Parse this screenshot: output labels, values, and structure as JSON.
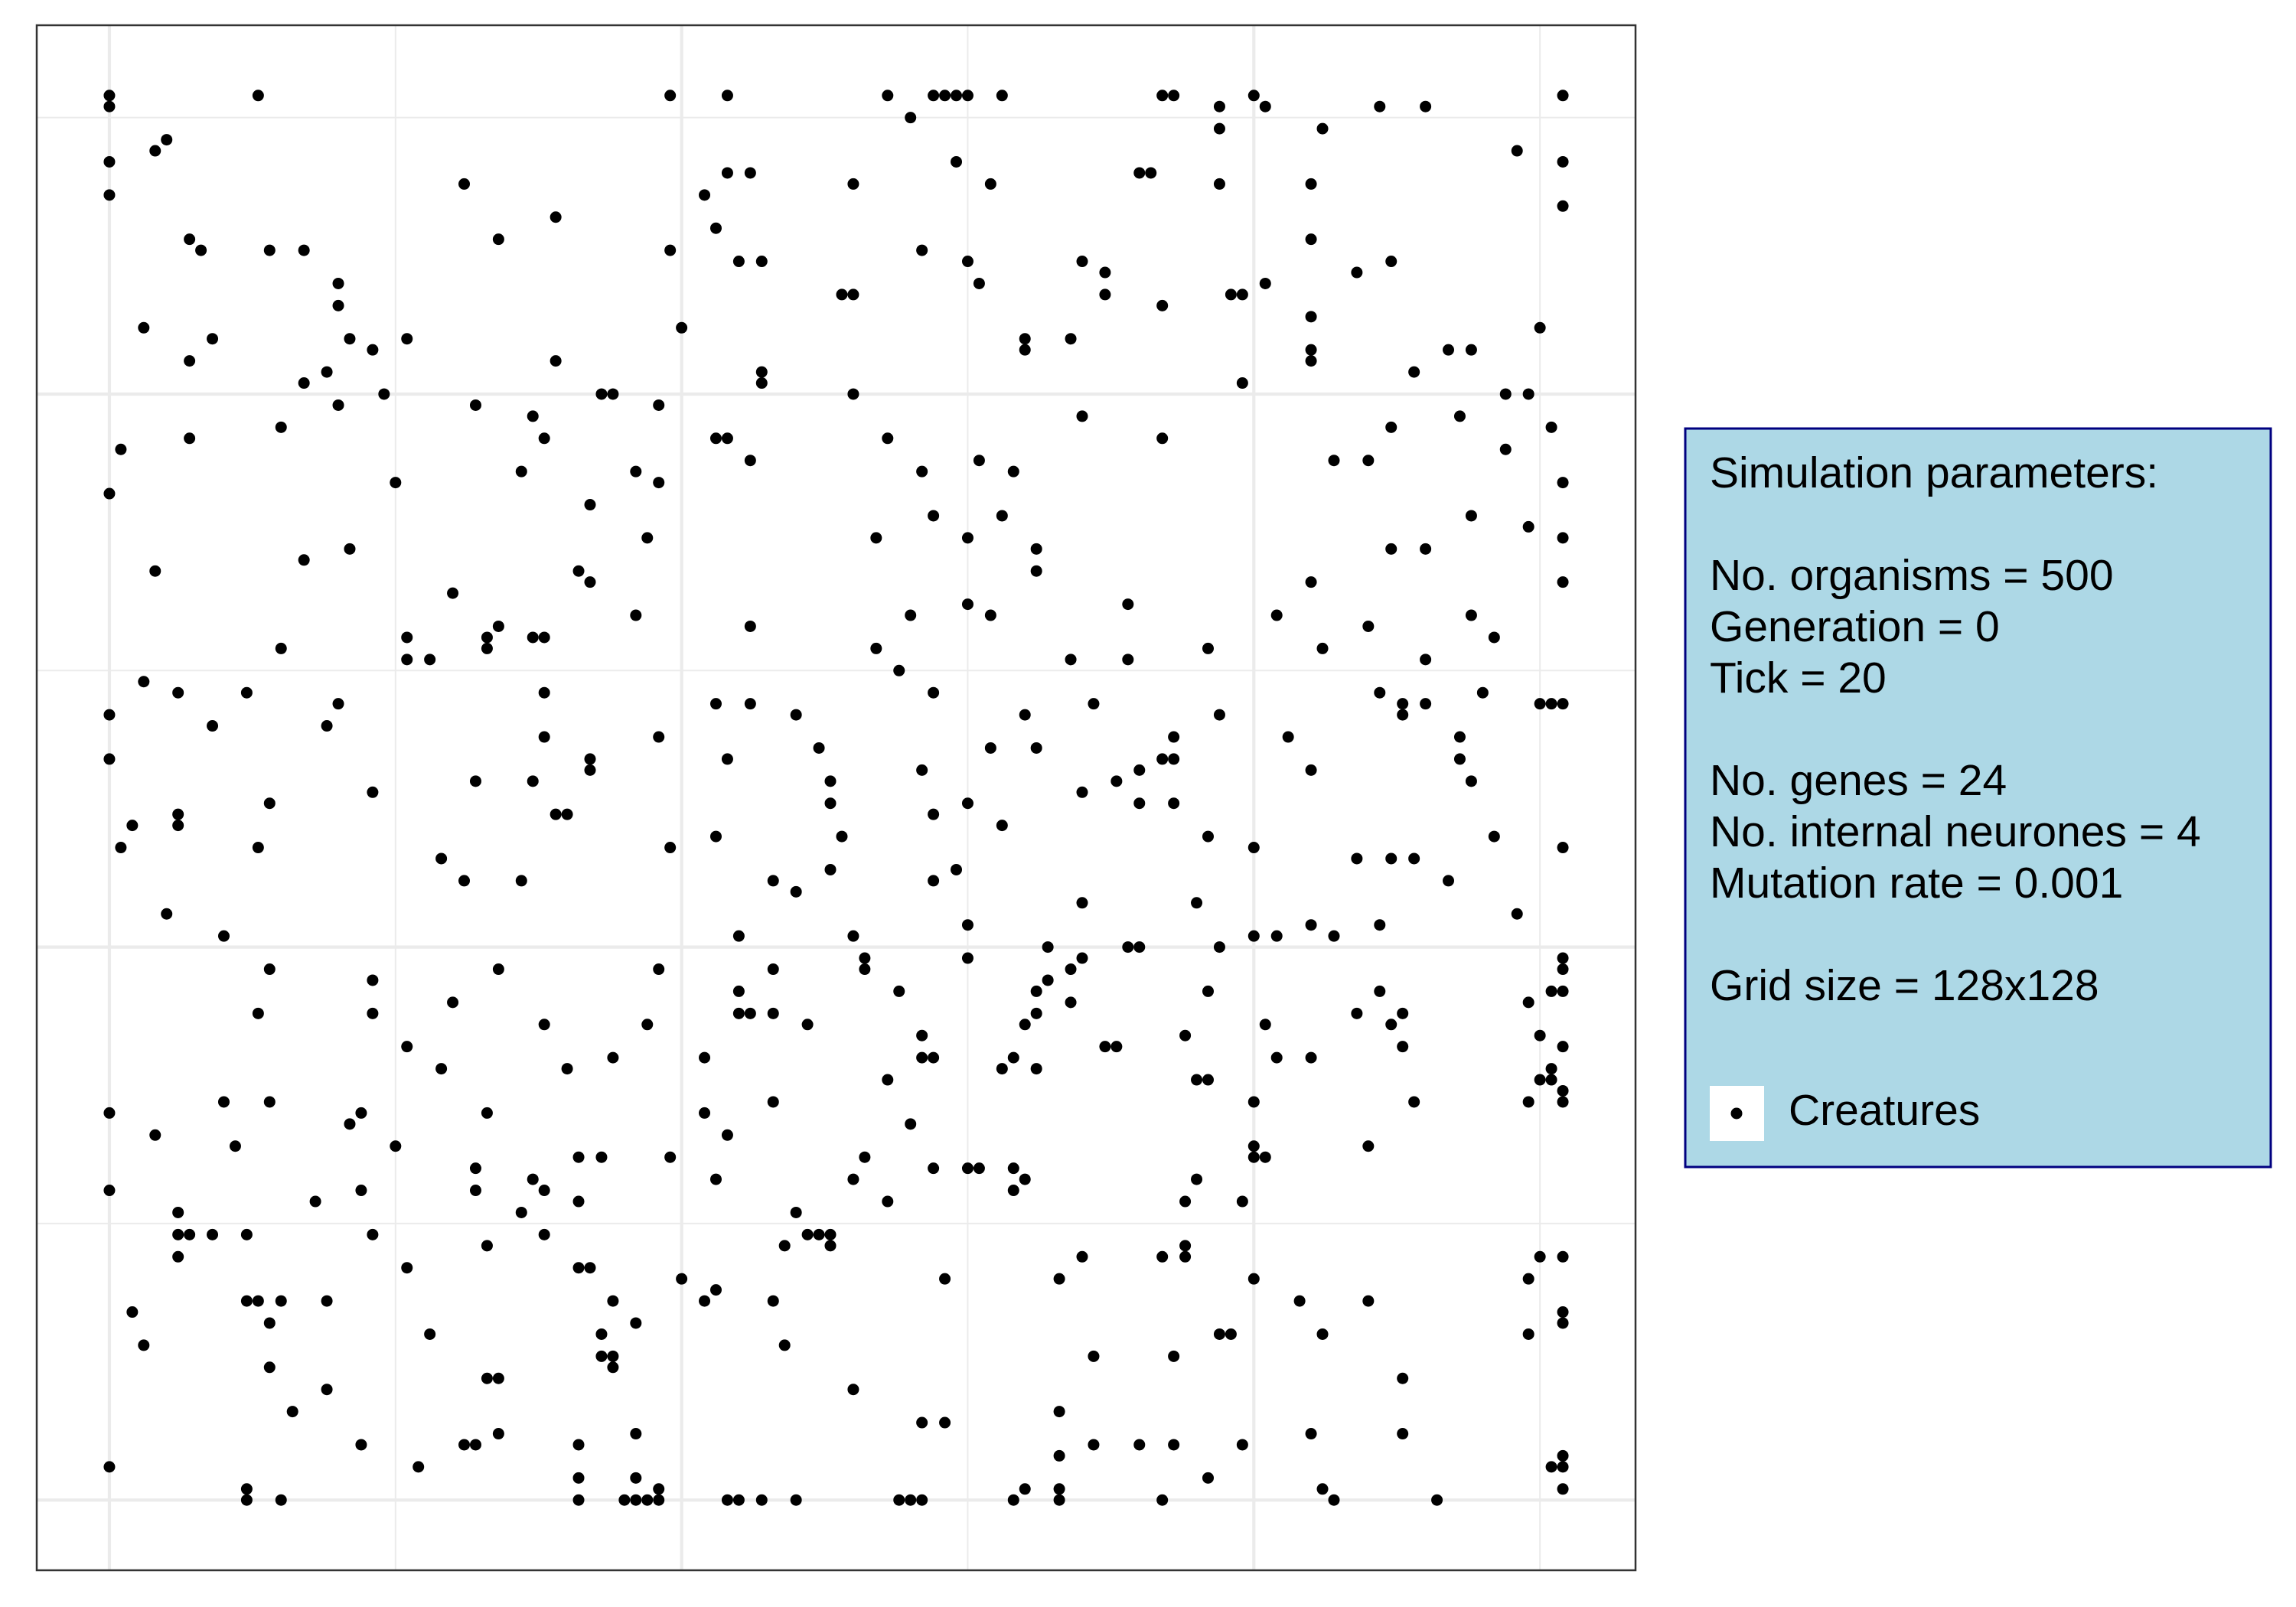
{
  "chart_data": {
    "type": "scatter",
    "xlim": [
      -6.35,
      133.35
    ],
    "ylim": [
      -6.35,
      133.35
    ],
    "xticks": [
      0,
      50,
      100
    ],
    "yticks": [
      0,
      50,
      100
    ],
    "x_minor_ticks": [
      25,
      75,
      125
    ],
    "y_minor_ticks": [
      25,
      75,
      125
    ],
    "tick_labels": false,
    "grid": true,
    "legend_position": "right",
    "legend_fill": "#add8e6",
    "legend_border": "#000080",
    "legend_title": [
      [
        "Simulation parameters:"
      ],
      [
        "No. organisms = 500",
        "Generation = 0",
        "Tick = 20"
      ],
      [
        "No. genes = 24",
        "No. internal neurones = 4",
        "Mutation rate = 0.001"
      ],
      [
        "Grid size = 128x128"
      ]
    ],
    "series": [
      {
        "name": "Creatures",
        "color": "#000000",
        "x": [
          0,
          13,
          49,
          54,
          68,
          72,
          73,
          74,
          75,
          78,
          92,
          93,
          100,
          127,
          0,
          97,
          101,
          111,
          115,
          70,
          97,
          106,
          5,
          4,
          123,
          0,
          74,
          127,
          54,
          56,
          90,
          91,
          31,
          65,
          77,
          97,
          105,
          0,
          52,
          127,
          39,
          53,
          7,
          34,
          105,
          8,
          14,
          17,
          49,
          71,
          55,
          57,
          75,
          85,
          112,
          87,
          109,
          20,
          76,
          101,
          64,
          65,
          87,
          98,
          99,
          20,
          92,
          105,
          3,
          50,
          125,
          9,
          21,
          26,
          80,
          84,
          23,
          80,
          105,
          117,
          119,
          7,
          39,
          105,
          19,
          57,
          114,
          17,
          57,
          99,
          24,
          43,
          44,
          65,
          122,
          124,
          20,
          32,
          48,
          37,
          85,
          118,
          15,
          112,
          126,
          7,
          38,
          53,
          54,
          68,
          92,
          1,
          122,
          56,
          76,
          107,
          110,
          36,
          46,
          71,
          79,
          25,
          48,
          127,
          0,
          42,
          72,
          78,
          119,
          124,
          47,
          67,
          75,
          127,
          21,
          81,
          112,
          115,
          17,
          4,
          41,
          81,
          42,
          105,
          127,
          30,
          75,
          89,
          46,
          70,
          77,
          102,
          119,
          34,
          56,
          110,
          26,
          33,
          37,
          38,
          121,
          15,
          33,
          67,
          96,
          106,
          26,
          28,
          84,
          89,
          115,
          69,
          3,
          6,
          12,
          38,
          72,
          111,
          120,
          20,
          53,
          56,
          86,
          113,
          115,
          125,
          126,
          127,
          0,
          60,
          80,
          97,
          113,
          9,
          19,
          38,
          48,
          93,
          103,
          118,
          62,
          77,
          81,
          0,
          42,
          54,
          92,
          93,
          118,
          42,
          71,
          90,
          105,
          32,
          37,
          63,
          88,
          119,
          23,
          85,
          14,
          63,
          75,
          90,
          93,
          6,
          39,
          40,
          72,
          2,
          6,
          78,
          53,
          64,
          96,
          121,
          1,
          13,
          49,
          100,
          127,
          29,
          109,
          112,
          114,
          63,
          74,
          31,
          36,
          58,
          72,
          117,
          60,
          85,
          95,
          5,
          123,
          75,
          105,
          111,
          10,
          55,
          65,
          100,
          102,
          107,
          82,
          89,
          90,
          97,
          66,
          75,
          85,
          127,
          14,
          34,
          48,
          58,
          66,
          84,
          127,
          23,
          82,
          55,
          69,
          81,
          96,
          111,
          126,
          127,
          30,
          84,
          124,
          13,
          23,
          55,
          56,
          58,
          81,
          109,
          113,
          38,
          47,
          61,
          80,
          101,
          112,
          71,
          94,
          125,
          26,
          87,
          88,
          113,
          127,
          44,
          52,
          71,
          72,
          79,
          102,
          105,
          29,
          40,
          78,
          81,
          126,
          68,
          95,
          96,
          125,
          126,
          127,
          10,
          14,
          58,
          100,
          114,
          124,
          127,
          0,
          22,
          33,
          52,
          21,
          70,
          4,
          54,
          11,
          25,
          100,
          110,
          41,
          43,
          49,
          66,
          100,
          101,
          32,
          72,
          75,
          76,
          79,
          37,
          53,
          65,
          80,
          95,
          0,
          22,
          32,
          38,
          79,
          18,
          41,
          68,
          94,
          99,
          6,
          36,
          60,
          6,
          7,
          9,
          12,
          23,
          38,
          61,
          62,
          63,
          33,
          59,
          63,
          94,
          6,
          85,
          92,
          94,
          125,
          127,
          26,
          41,
          42,
          50,
          73,
          83,
          100,
          124,
          53,
          12,
          13,
          15,
          19,
          44,
          52,
          58,
          104,
          110,
          2,
          127,
          14,
          46,
          127,
          28,
          43,
          97,
          98,
          106,
          124,
          3,
          59,
          43,
          44,
          86,
          93,
          14,
          44,
          33,
          34,
          113,
          19,
          65,
          16,
          83,
          71,
          73,
          34,
          46,
          105,
          113,
          22,
          31,
          32,
          41,
          86,
          90,
          93,
          99,
          83,
          127,
          0,
          27,
          126,
          127,
          41,
          46,
          96,
          12,
          48,
          80,
          83,
          106,
          127,
          12,
          15,
          41,
          45,
          46,
          47,
          48,
          54,
          55,
          57,
          60,
          69,
          70,
          71,
          79,
          83,
          92,
          107,
          116
        ],
        "y": [
          127,
          127,
          127,
          127,
          127,
          127,
          127,
          127,
          127,
          127,
          127,
          127,
          127,
          127,
          126,
          126,
          126,
          126,
          126,
          125,
          124,
          124,
          123,
          122,
          122,
          121,
          121,
          121,
          120,
          120,
          120,
          120,
          119,
          119,
          119,
          119,
          119,
          118,
          118,
          117,
          116,
          115,
          114,
          114,
          114,
          113,
          113,
          113,
          113,
          113,
          112,
          112,
          112,
          112,
          112,
          111,
          111,
          110,
          110,
          110,
          109,
          109,
          109,
          109,
          109,
          108,
          108,
          107,
          106,
          106,
          106,
          105,
          105,
          105,
          105,
          105,
          104,
          104,
          104,
          104,
          104,
          103,
          103,
          103,
          102,
          102,
          102,
          101,
          101,
          101,
          100,
          100,
          100,
          100,
          100,
          100,
          99,
          99,
          99,
          98,
          98,
          98,
          97,
          97,
          97,
          96,
          96,
          96,
          96,
          96,
          96,
          95,
          95,
          94,
          94,
          94,
          94,
          93,
          93,
          93,
          93,
          92,
          92,
          92,
          91,
          90,
          89,
          89,
          89,
          88,
          87,
          87,
          87,
          87,
          86,
          86,
          86,
          86,
          85,
          84,
          84,
          84,
          83,
          83,
          83,
          82,
          81,
          81,
          80,
          80,
          80,
          80,
          80,
          79,
          79,
          79,
          78,
          78,
          78,
          78,
          78,
          77,
          77,
          77,
          77,
          77,
          76,
          76,
          76,
          76,
          76,
          75,
          74,
          73,
          73,
          73,
          73,
          73,
          73,
          72,
          72,
          72,
          72,
          72,
          72,
          72,
          72,
          72,
          71,
          71,
          71,
          71,
          71,
          70,
          70,
          69,
          69,
          69,
          69,
          69,
          68,
          68,
          68,
          67,
          67,
          67,
          67,
          67,
          67,
          66,
          66,
          66,
          66,
          65,
          65,
          65,
          65,
          65,
          64,
          64,
          63,
          63,
          63,
          63,
          63,
          62,
          62,
          62,
          62,
          61,
          61,
          61,
          60,
          60,
          60,
          60,
          59,
          59,
          59,
          59,
          59,
          58,
          58,
          58,
          58,
          57,
          57,
          56,
          56,
          56,
          56,
          56,
          55,
          54,
          54,
          53,
          53,
          52,
          52,
          52,
          51,
          51,
          51,
          51,
          51,
          51,
          50,
          50,
          50,
          50,
          49,
          49,
          49,
          49,
          48,
          48,
          48,
          48,
          48,
          48,
          48,
          47,
          47,
          46,
          46,
          46,
          46,
          46,
          46,
          46,
          45,
          45,
          45,
          44,
          44,
          44,
          44,
          44,
          44,
          44,
          44,
          43,
          43,
          43,
          43,
          43,
          43,
          42,
          42,
          42,
          41,
          41,
          41,
          41,
          41,
          40,
          40,
          40,
          40,
          40,
          40,
          40,
          39,
          39,
          39,
          39,
          39,
          38,
          38,
          38,
          38,
          38,
          37,
          36,
          36,
          36,
          36,
          36,
          36,
          36,
          35,
          35,
          35,
          35,
          34,
          34,
          33,
          33,
          32,
          32,
          32,
          32,
          31,
          31,
          31,
          31,
          31,
          31,
          30,
          30,
          30,
          30,
          30,
          29,
          29,
          29,
          29,
          29,
          28,
          28,
          28,
          28,
          28,
          27,
          27,
          27,
          27,
          27,
          26,
          26,
          26,
          24,
          24,
          24,
          24,
          24,
          24,
          24,
          24,
          24,
          23,
          23,
          23,
          23,
          22,
          22,
          22,
          22,
          22,
          22,
          21,
          21,
          21,
          20,
          20,
          20,
          20,
          20,
          19,
          18,
          18,
          18,
          18,
          18,
          18,
          18,
          18,
          18,
          17,
          17,
          16,
          16,
          16,
          15,
          15,
          15,
          15,
          15,
          15,
          14,
          14,
          13,
          13,
          13,
          13,
          12,
          12,
          11,
          11,
          11,
          10,
          10,
          8,
          8,
          7,
          7,
          6,
          6,
          6,
          6,
          5,
          5,
          5,
          5,
          5,
          5,
          5,
          5,
          4,
          4,
          3,
          3,
          3,
          3,
          2,
          2,
          2,
          1,
          1,
          1,
          1,
          1,
          1,
          0,
          0,
          0,
          0,
          0,
          0,
          0,
          0,
          0,
          0,
          0,
          0,
          0,
          0,
          0,
          0,
          0,
          0,
          0
        ]
      }
    ]
  }
}
